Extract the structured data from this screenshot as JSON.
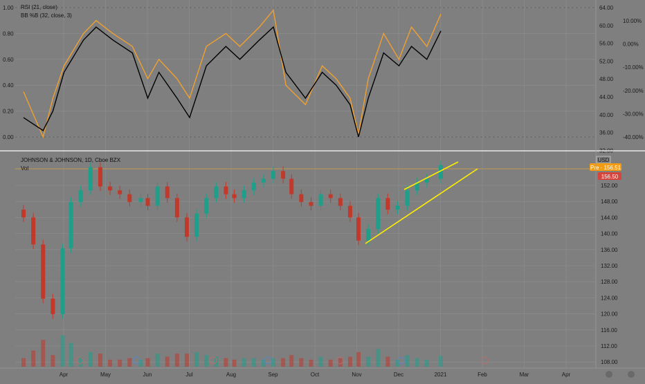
{
  "colors": {
    "background": "#7f7f7f",
    "grid": "#8f8f8f",
    "up": "#1f9e89",
    "down": "#c0392b",
    "rsi": "#000000",
    "bbpb": "#f0a030",
    "trend": "#ffee00",
    "pre_badge": "#f39c12",
    "close_badge": "#d6453d"
  },
  "top_pane": {
    "legend": [
      "RSI (21, close)",
      "BB %B (32, close, 3)"
    ],
    "left_ticks": [
      "1.00",
      "0.80",
      "0.60",
      "0.40",
      "0.20",
      "0.00"
    ],
    "right_ticks": [
      "64.00",
      "60.00",
      "56.00",
      "52.00",
      "48.00",
      "44.00",
      "40.00",
      "36.00",
      "32.00"
    ],
    "right_pct_ticks": [
      "10.00%",
      "0.00%",
      "-10.00%",
      "-20.00%",
      "-30.00%",
      "-40.00%"
    ]
  },
  "main_pane": {
    "title": "JOHNSON & JOHNSON, 1D, Cboe BZX",
    "vol_label": "Vol",
    "currency": "USD",
    "price_ticks": [
      "152.00",
      "148.00",
      "144.00",
      "140.00",
      "136.00",
      "132.00",
      "128.00",
      "124.00",
      "120.00",
      "116.00",
      "112.00",
      "108.00"
    ],
    "pre_badge": "Pre · 156.51",
    "close_badge": "156.50"
  },
  "x_axis": {
    "labels": [
      "Apr",
      "May",
      "Jun",
      "Jul",
      "Aug",
      "Sep",
      "Oct",
      "Nov",
      "Dec",
      "2021",
      "Feb",
      "Mar",
      "Apr"
    ]
  },
  "chart_data": [
    {
      "type": "line",
      "title": "RSI (21, close) / BB %B (32, close, 3)",
      "series": [
        {
          "name": "RSI (21, close)",
          "x": [
            "Mar 2",
            "Mar 16",
            "Mar 23",
            "Apr 1",
            "Apr 15",
            "Apr 24",
            "May 6",
            "May 20",
            "Jun 1",
            "Jun 9",
            "Jun 22",
            "Jul 1",
            "Jul 13",
            "Jul 27",
            "Aug 7",
            "Aug 21",
            "Aug 31",
            "Sep 10",
            "Sep 24",
            "Oct 6",
            "Oct 16",
            "Oct 26",
            "Nov 2",
            "Nov 9",
            "Nov 20",
            "Dec 1",
            "Dec 10",
            "Dec 21",
            "Dec 31"
          ],
          "values": [
            0.15,
            0.05,
            0.2,
            0.5,
            0.75,
            0.85,
            0.75,
            0.65,
            0.3,
            0.5,
            0.3,
            0.15,
            0.55,
            0.7,
            0.6,
            0.75,
            0.85,
            0.5,
            0.3,
            0.5,
            0.4,
            0.25,
            0.0,
            0.3,
            0.65,
            0.55,
            0.7,
            0.6,
            0.82
          ]
        },
        {
          "name": "BB %B (32, close, 3)",
          "x": [
            "Mar 2",
            "Mar 16",
            "Mar 23",
            "Apr 1",
            "Apr 15",
            "Apr 24",
            "May 6",
            "May 20",
            "Jun 1",
            "Jun 9",
            "Jun 22",
            "Jul 1",
            "Jul 13",
            "Jul 27",
            "Aug 7",
            "Aug 21",
            "Aug 31",
            "Sep 10",
            "Sep 24",
            "Oct 6",
            "Oct 16",
            "Oct 26",
            "Nov 2",
            "Nov 9",
            "Nov 20",
            "Dec 1",
            "Dec 10",
            "Dec 21",
            "Dec 31"
          ],
          "values": [
            0.35,
            0.0,
            0.3,
            0.55,
            0.8,
            0.9,
            0.8,
            0.7,
            0.45,
            0.6,
            0.45,
            0.3,
            0.7,
            0.8,
            0.7,
            0.85,
            0.98,
            0.4,
            0.25,
            0.55,
            0.45,
            0.3,
            0.02,
            0.45,
            0.8,
            0.6,
            0.85,
            0.7,
            0.95
          ]
        }
      ],
      "left_axis": {
        "range": [
          0,
          1
        ]
      },
      "right_axis": {
        "range": [
          32,
          64
        ]
      },
      "grid": true
    },
    {
      "type": "line",
      "title": "JOHNSON & JOHNSON, 1D, Cboe BZX",
      "x": [
        "Mar 2",
        "Mar 9",
        "Mar 16",
        "Mar 23",
        "Mar 30",
        "Apr 6",
        "Apr 13",
        "Apr 20",
        "Apr 27",
        "May 4",
        "May 11",
        "May 18",
        "May 26",
        "Jun 1",
        "Jun 8",
        "Jun 15",
        "Jun 22",
        "Jun 29",
        "Jul 6",
        "Jul 13",
        "Jul 20",
        "Jul 27",
        "Aug 3",
        "Aug 10",
        "Aug 17",
        "Aug 24",
        "Aug 31",
        "Sep 8",
        "Sep 14",
        "Sep 21",
        "Sep 28",
        "Oct 5",
        "Oct 12",
        "Oct 19",
        "Oct 26",
        "Nov 2",
        "Nov 9",
        "Nov 16",
        "Nov 23",
        "Nov 30",
        "Dec 7",
        "Dec 14",
        "Dec 21",
        "Dec 31"
      ],
      "series": [
        {
          "name": "Close",
          "values": [
            143,
            136,
            122,
            118,
            135,
            147,
            150,
            156,
            151,
            150,
            149,
            147,
            148,
            146,
            151,
            148,
            143,
            138,
            144,
            148,
            151,
            149,
            148,
            150,
            152,
            153,
            155,
            153,
            149,
            147,
            146,
            149,
            148,
            146,
            143,
            137,
            140,
            148,
            145,
            146,
            150,
            152,
            153,
            156.5
          ]
        }
      ],
      "ylim": [
        106,
        157
      ],
      "annotations": [
        "upper trend line",
        "lower trend line",
        "Pre · 156.51",
        "156.50"
      ],
      "grid": true
    }
  ]
}
